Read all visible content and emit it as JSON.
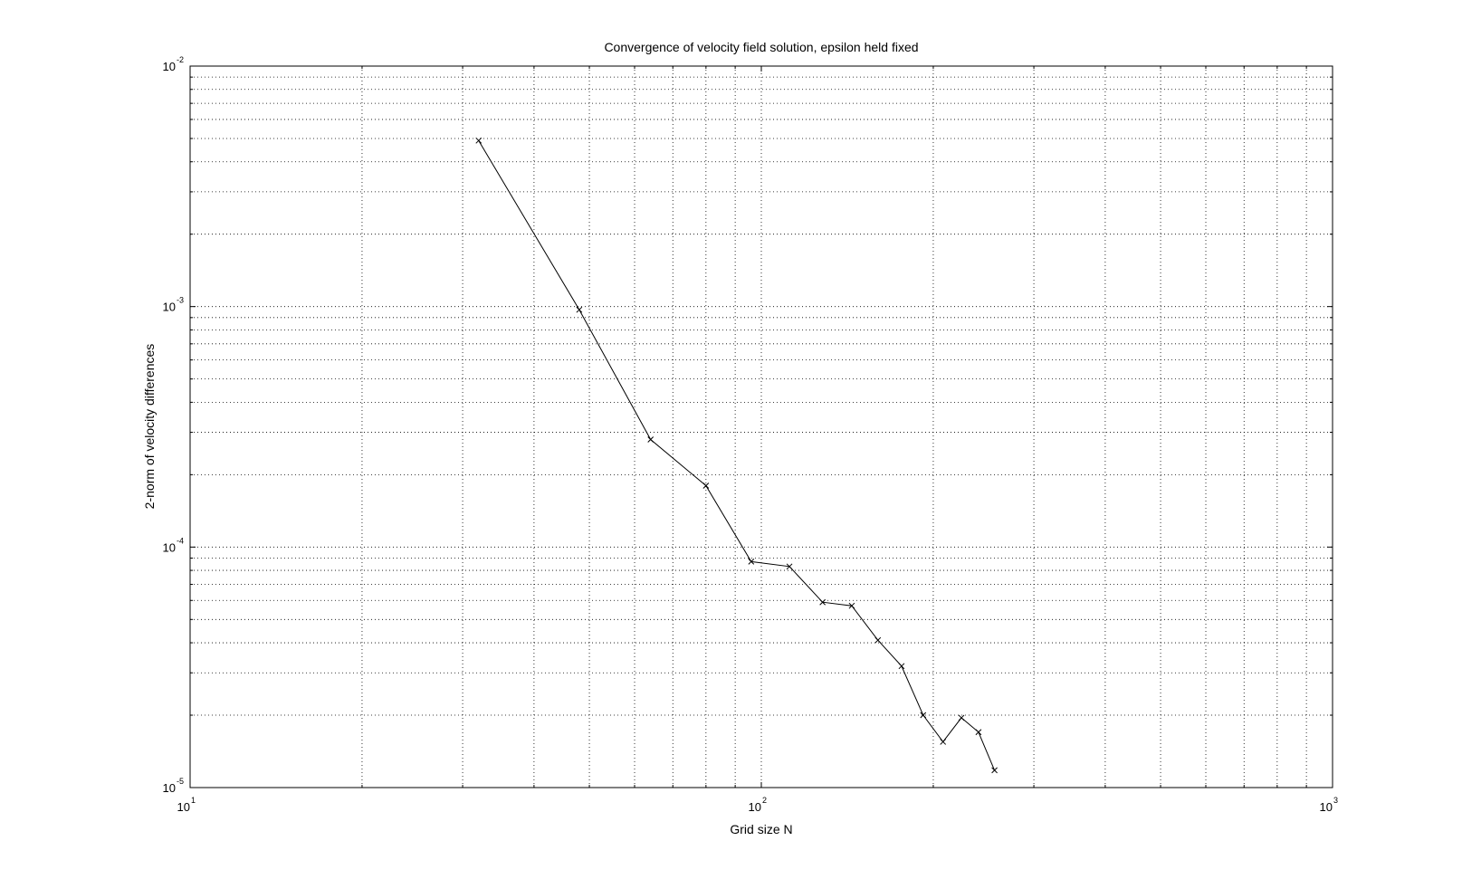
{
  "chart_data": {
    "type": "line",
    "title": "Convergence of velocity field solution, epsilon held fixed",
    "xlabel": "Grid size N",
    "ylabel": "2-norm of velocity differences",
    "xscale": "log",
    "yscale": "log",
    "xlim": [
      10,
      1000
    ],
    "ylim": [
      1e-05,
      0.01
    ],
    "grid": true,
    "marker": "x",
    "line_color": "#000000",
    "x_ticks": [
      {
        "base": "10",
        "exp": "1",
        "value": 10
      },
      {
        "base": "10",
        "exp": "2",
        "value": 100
      },
      {
        "base": "10",
        "exp": "3",
        "value": 1000
      }
    ],
    "y_ticks": [
      {
        "base": "10",
        "exp": "-5",
        "value": 1e-05
      },
      {
        "base": "10",
        "exp": "-4",
        "value": 0.0001
      },
      {
        "base": "10",
        "exp": "-3",
        "value": 0.001
      },
      {
        "base": "10",
        "exp": "-2",
        "value": 0.01
      }
    ],
    "x": [
      32,
      48,
      64,
      80,
      96,
      112,
      128,
      144,
      160,
      176,
      192,
      208,
      224,
      240,
      256
    ],
    "y": [
      0.0049,
      0.00097,
      0.00028,
      0.00018,
      8.7e-05,
      8.3e-05,
      5.9e-05,
      5.7e-05,
      4.1e-05,
      3.2e-05,
      2e-05,
      1.55e-05,
      1.95e-05,
      1.7e-05,
      1.18e-05
    ]
  }
}
